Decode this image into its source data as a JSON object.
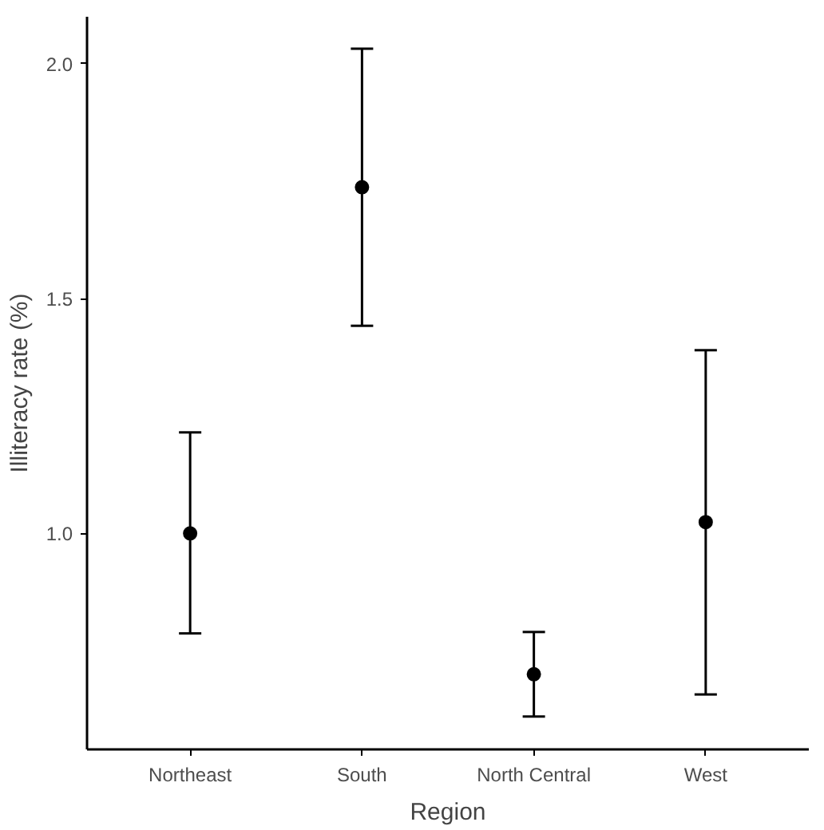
{
  "chart_data": {
    "type": "scatter",
    "xlabel": "Region",
    "ylabel": "Illiteracy rate (%)",
    "categories": [
      "Northeast",
      "South",
      "North Central",
      "West"
    ],
    "values": [
      1.0,
      1.737,
      0.7,
      1.024
    ],
    "errors": [
      [
        0.787,
        1.215
      ],
      [
        1.442,
        2.032
      ],
      [
        0.61,
        0.79
      ],
      [
        0.657,
        1.39
      ]
    ],
    "color": "#000000",
    "marker": "circle",
    "ylim": [
      0.54,
      2.1
    ],
    "yticks": [
      {
        "value": 1.0,
        "label": "1.0"
      },
      {
        "value": 1.5,
        "label": "1.5"
      },
      {
        "value": 2.0,
        "label": "2.0"
      }
    ],
    "grid": false
  }
}
